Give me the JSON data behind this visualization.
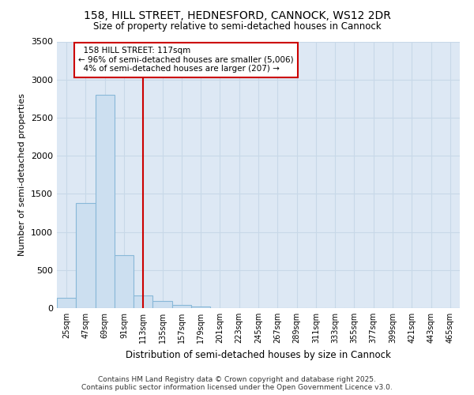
{
  "title1": "158, HILL STREET, HEDNESFORD, CANNOCK, WS12 2DR",
  "title2": "Size of property relative to semi-detached houses in Cannock",
  "xlabel": "Distribution of semi-detached houses by size in Cannock",
  "ylabel": "Number of semi-detached properties",
  "bin_labels": [
    "25sqm",
    "47sqm",
    "69sqm",
    "91sqm",
    "113sqm",
    "135sqm",
    "157sqm",
    "179sqm",
    "201sqm",
    "223sqm",
    "245sqm",
    "267sqm",
    "289sqm",
    "311sqm",
    "333sqm",
    "355sqm",
    "377sqm",
    "399sqm",
    "421sqm",
    "443sqm",
    "465sqm"
  ],
  "bar_values": [
    140,
    1380,
    2800,
    700,
    165,
    90,
    40,
    25,
    5,
    0,
    0,
    0,
    0,
    0,
    0,
    0,
    0,
    0,
    0,
    0,
    0
  ],
  "bar_color": "#ccdff0",
  "bar_edge_color": "#88b8d8",
  "property_label": "158 HILL STREET: 117sqm",
  "pct_smaller": 96,
  "pct_larger": 4,
  "n_smaller": 5006,
  "n_larger": 207,
  "vline_color": "#cc0000",
  "annotation_box_color": "#cc0000",
  "ylim": [
    0,
    3500
  ],
  "yticks": [
    0,
    500,
    1000,
    1500,
    2000,
    2500,
    3000,
    3500
  ],
  "grid_color": "#c8d8e8",
  "bg_color": "#dde8f4",
  "footer1": "Contains HM Land Registry data © Crown copyright and database right 2025.",
  "footer2": "Contains public sector information licensed under the Open Government Licence v3.0."
}
